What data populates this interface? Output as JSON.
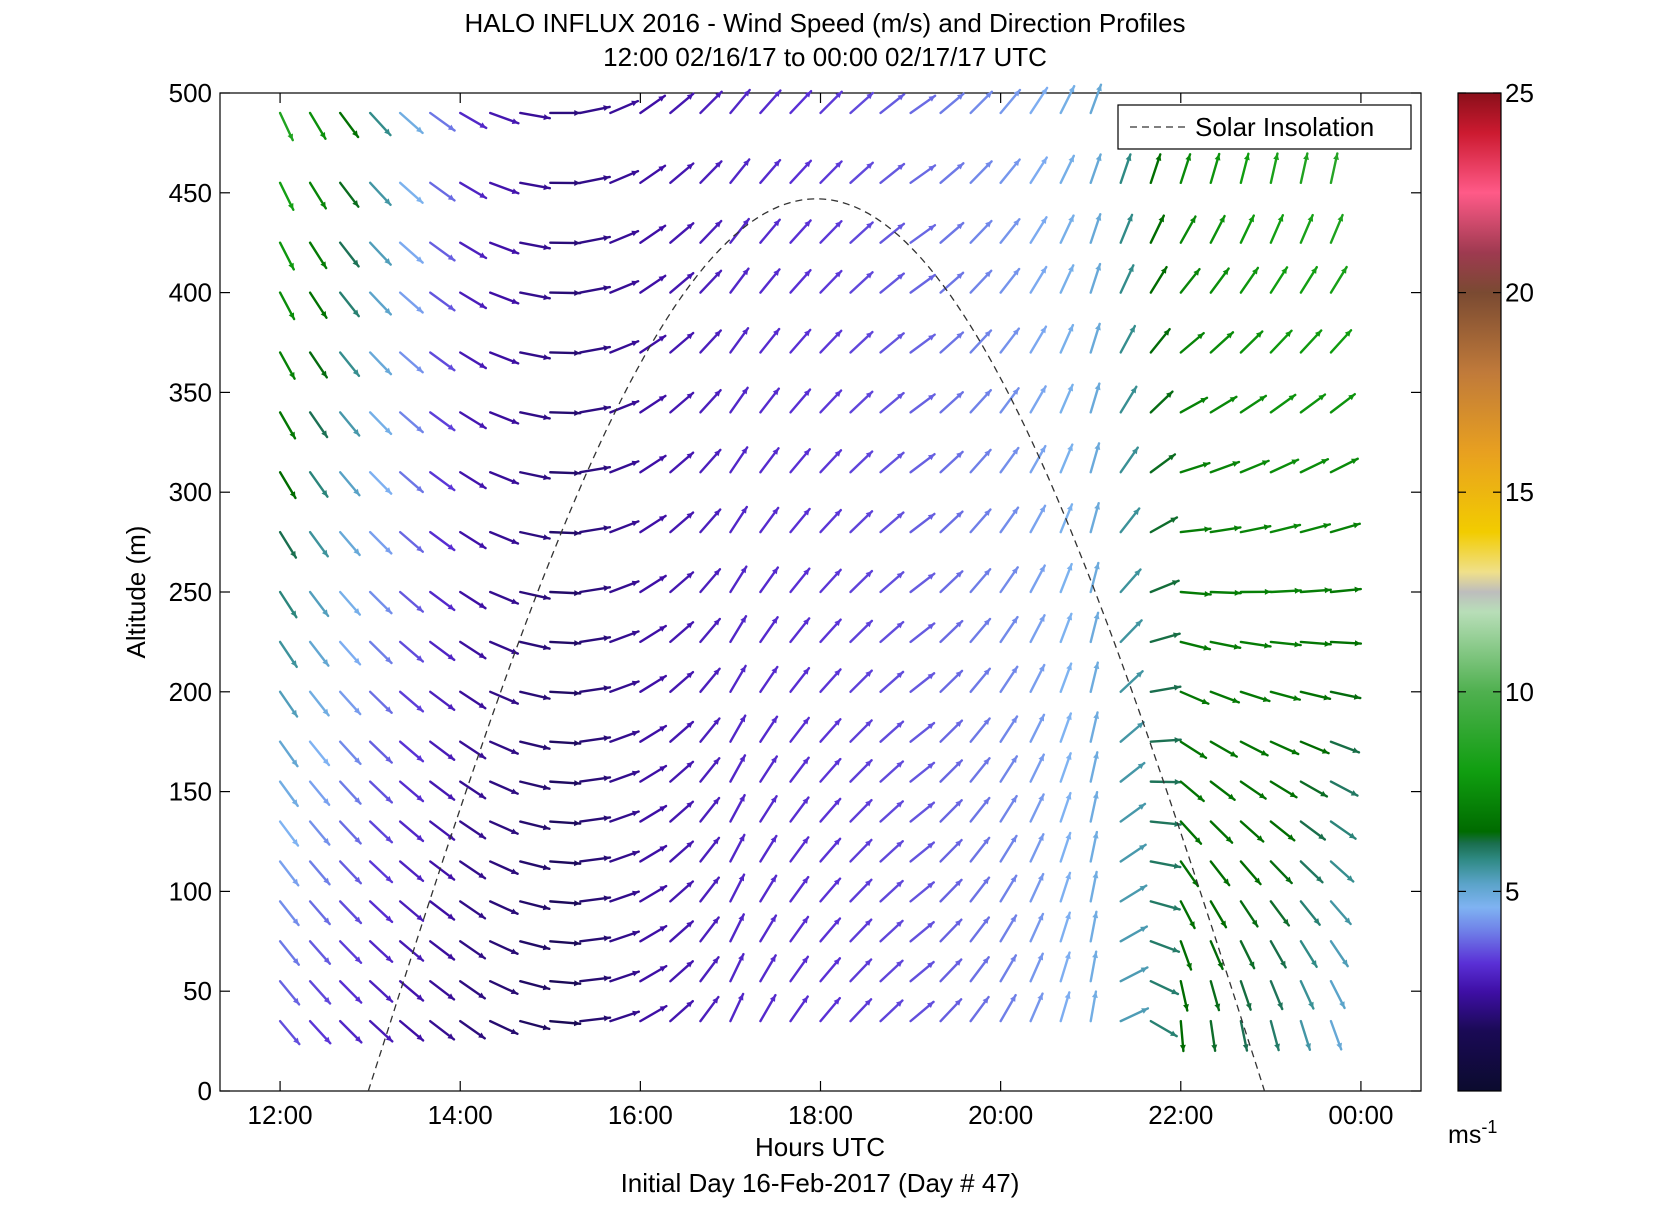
{
  "chart_data": {
    "type": "quiver",
    "title": "HALO INFLUX 2016 - Wind Speed (m/s) and Direction Profiles",
    "subtitle": "12:00 02/16/17 to 00:00 02/17/17  UTC",
    "xlabel": "Hours UTC",
    "xlabel2": "Initial Day 16-Feb-2017 (Day # 47)",
    "ylabel": "Altitude (m)",
    "xlim_hours": [
      11.333,
      24.667
    ],
    "ylim": [
      0,
      500
    ],
    "x_ticks": [
      {
        "value": 12,
        "label": "12:00"
      },
      {
        "value": 14,
        "label": "14:00"
      },
      {
        "value": 16,
        "label": "16:00"
      },
      {
        "value": 18,
        "label": "18:00"
      },
      {
        "value": 20,
        "label": "20:00"
      },
      {
        "value": 22,
        "label": "22:00"
      },
      {
        "value": 24,
        "label": "00:00"
      }
    ],
    "y_ticks": [
      {
        "value": 0,
        "label": "0"
      },
      {
        "value": 50,
        "label": "50"
      },
      {
        "value": 100,
        "label": "100"
      },
      {
        "value": 150,
        "label": "150"
      },
      {
        "value": 200,
        "label": "200"
      },
      {
        "value": 250,
        "label": "250"
      },
      {
        "value": 300,
        "label": "300"
      },
      {
        "value": 350,
        "label": "350"
      },
      {
        "value": 400,
        "label": "400"
      },
      {
        "value": 450,
        "label": "450"
      },
      {
        "value": 500,
        "label": "500"
      }
    ],
    "legend": {
      "label": "Solar Insolation",
      "position": "top-right",
      "style": "dashed"
    },
    "solar_insolation": {
      "start_hour": 12.98,
      "peak_hour": 17.93,
      "peak_altitude": 447,
      "end_hour": 22.93
    },
    "colorbar": {
      "range": [
        0,
        25
      ],
      "ticks": [
        {
          "value": 5,
          "label": "5"
        },
        {
          "value": 10,
          "label": "10"
        },
        {
          "value": 15,
          "label": "15"
        },
        {
          "value": 20,
          "label": "20"
        },
        {
          "value": 25,
          "label": "25"
        }
      ],
      "unit": "ms",
      "unit_exponent": "-1",
      "stops": [
        {
          "v": 0,
          "c": "#0b0b2e"
        },
        {
          "v": 1.5,
          "c": "#1a0a55"
        },
        {
          "v": 2.5,
          "c": "#3f0fa6"
        },
        {
          "v": 3.2,
          "c": "#5a30d6"
        },
        {
          "v": 4.0,
          "c": "#6f7fe8"
        },
        {
          "v": 4.6,
          "c": "#7fb3f2"
        },
        {
          "v": 5.2,
          "c": "#5aa3c8"
        },
        {
          "v": 5.8,
          "c": "#2f8a84"
        },
        {
          "v": 6.2,
          "c": "#1a6e4e"
        },
        {
          "v": 6.5,
          "c": "#006b00"
        },
        {
          "v": 8.0,
          "c": "#109e10"
        },
        {
          "v": 10.0,
          "c": "#4fb04f"
        },
        {
          "v": 12.0,
          "c": "#b8deb8"
        },
        {
          "v": 12.5,
          "c": "#bdbdbd"
        },
        {
          "v": 13.0,
          "c": "#f0e08a"
        },
        {
          "v": 14.0,
          "c": "#f2cc00"
        },
        {
          "v": 16.0,
          "c": "#e8a020"
        },
        {
          "v": 18.0,
          "c": "#c07a3a"
        },
        {
          "v": 20.0,
          "c": "#7a4a32"
        },
        {
          "v": 21.0,
          "c": "#9e3a50"
        },
        {
          "v": 22.5,
          "c": "#ff5a88"
        },
        {
          "v": 24.0,
          "c": "#cc1a30"
        },
        {
          "v": 25.0,
          "c": "#8a0f1a"
        }
      ]
    },
    "altitudes": [
      35,
      55,
      75,
      95,
      115,
      135,
      155,
      175,
      200,
      225,
      250,
      280,
      310,
      340,
      370,
      400,
      425,
      455,
      490
    ],
    "times": [
      12.0,
      12.333,
      12.667,
      13.0,
      13.333,
      13.667,
      14.0,
      14.333,
      14.667,
      15.0,
      15.333,
      15.667,
      16.0,
      16.333,
      16.667,
      17.0,
      17.333,
      17.667,
      18.0,
      18.333,
      18.667,
      19.0,
      19.333,
      19.667,
      20.0,
      20.333,
      20.667,
      21.0,
      21.333,
      21.667,
      22.0,
      22.333,
      22.667,
      23.0,
      23.333,
      23.667
    ],
    "field": {
      "note": "wind direction (bearing toward, deg) and speed (m/s) vary with time and height",
      "anchors": [
        {
          "t": 12.0,
          "dir_low": 140,
          "dir_high": 155,
          "spd_low": 3.5,
          "spd_high": 8.5
        },
        {
          "t": 14.0,
          "dir_low": 125,
          "dir_high": 120,
          "spd_low": 2.0,
          "spd_high": 3.0
        },
        {
          "t": 15.0,
          "dir_low": 95,
          "dir_high": 90,
          "spd_low": 1.5,
          "spd_high": 2.0
        },
        {
          "t": 16.0,
          "dir_low": 60,
          "dir_high": 55,
          "spd_low": 2.5,
          "spd_high": 2.5
        },
        {
          "t": 17.0,
          "dir_low": 25,
          "dir_high": 40,
          "spd_low": 3.0,
          "spd_high": 3.0
        },
        {
          "t": 18.0,
          "dir_low": 40,
          "dir_high": 45,
          "spd_low": 3.2,
          "spd_high": 3.3
        },
        {
          "t": 19.0,
          "dir_low": 50,
          "dir_high": 55,
          "spd_low": 3.5,
          "spd_high": 3.8
        },
        {
          "t": 20.0,
          "dir_low": 30,
          "dir_high": 40,
          "spd_low": 4.0,
          "spd_high": 4.3
        },
        {
          "t": 21.0,
          "dir_low": 10,
          "dir_high": 20,
          "spd_low": 4.8,
          "spd_high": 5.0
        },
        {
          "t": 22.0,
          "dir_low": 175,
          "dir_high": 5,
          "spd_low": 6.5,
          "spd_high": 7.5
        },
        {
          "t": 23.0,
          "dir_low": 165,
          "dir_high": 0,
          "spd_low": 6.0,
          "spd_high": 8.5
        },
        {
          "t": 23.667,
          "dir_low": 160,
          "dir_high": 0,
          "spd_low": 5.0,
          "spd_high": 9.0
        }
      ]
    }
  }
}
